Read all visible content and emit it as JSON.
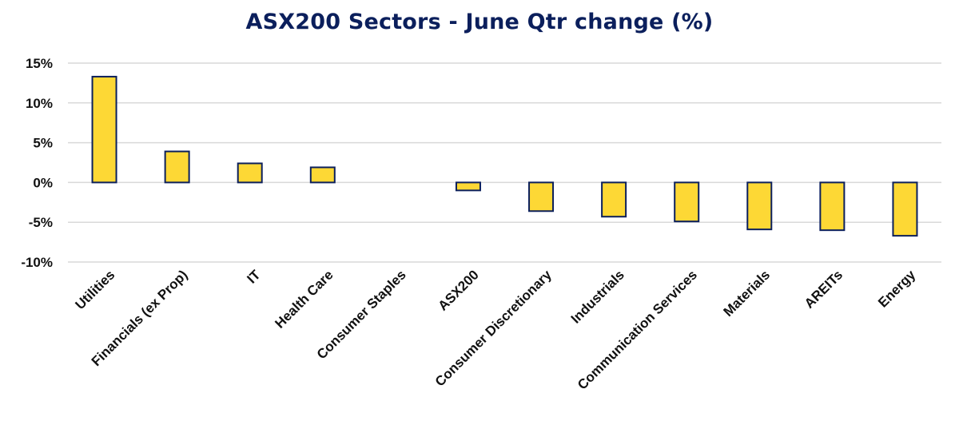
{
  "chart_data": {
    "type": "bar",
    "title": "ASX200 Sectors - June Qtr change (%)",
    "xlabel": "",
    "ylabel": "",
    "categories": [
      "Utilities",
      "Financials (ex Prop)",
      "IT",
      "Health Care",
      "Consumer Staples",
      "ASX200",
      "Consumer Discretionary",
      "Industrials",
      "Communication Services",
      "Materials",
      "AREITs",
      "Energy"
    ],
    "values": [
      13.3,
      3.9,
      2.4,
      1.9,
      0.0,
      -1.0,
      -3.6,
      -4.3,
      -4.9,
      -5.9,
      -6.0,
      -6.7
    ],
    "ylim": [
      -10,
      15
    ],
    "yticks": [
      15,
      10,
      5,
      0,
      -5,
      -10
    ],
    "ytick_labels": [
      "15%",
      "10%",
      "5%",
      "0%",
      "-5%",
      "-10%"
    ],
    "grid": true,
    "bar_fill": "#fdd835",
    "bar_stroke": "#0b1f5c",
    "title_color": "#0b1f5c"
  }
}
